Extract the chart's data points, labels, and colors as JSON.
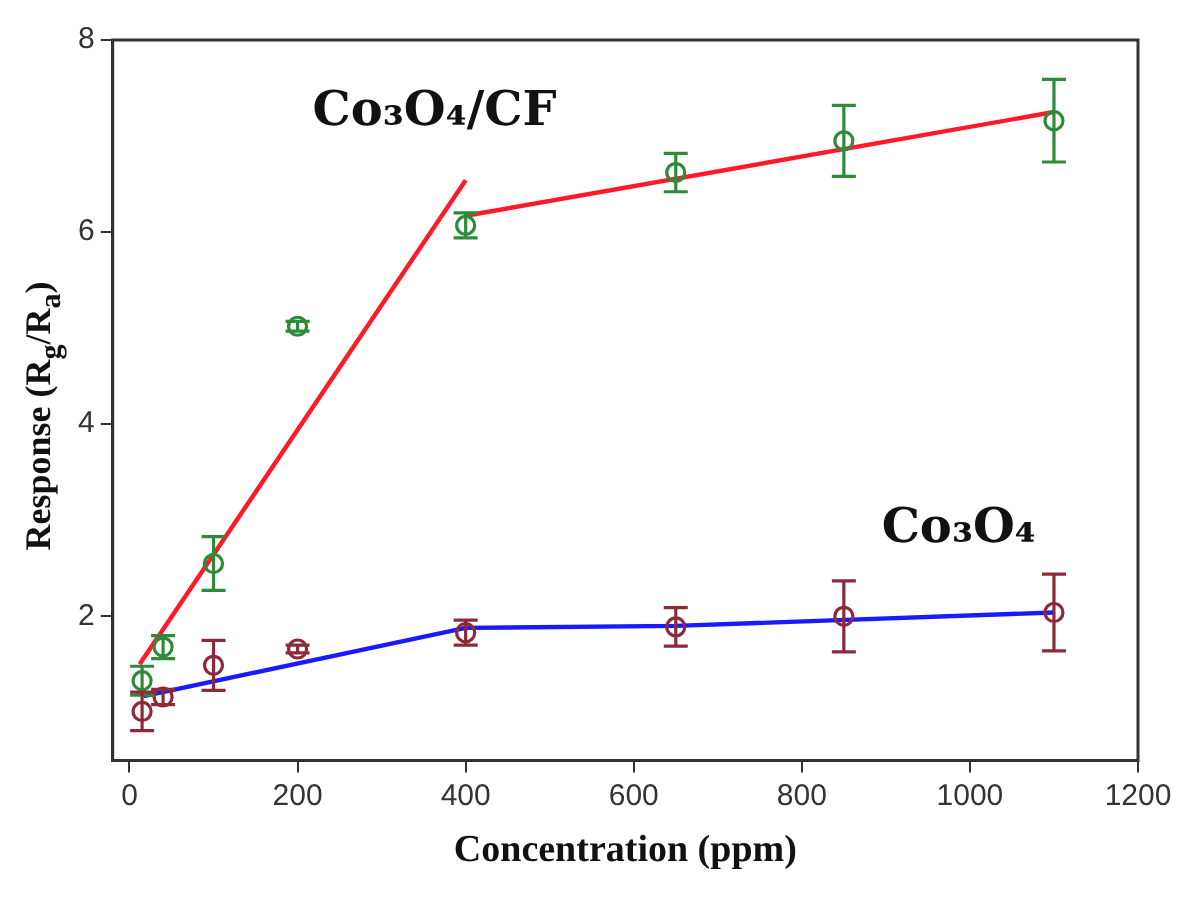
{
  "chart_data": {
    "type": "scatter",
    "xlabel": "Concentration (ppm)",
    "ylabel": "Response (R$_{g}$/R$_{a}$)",
    "xlim": [
      -20,
      1200
    ],
    "xticks": [
      0,
      200,
      400,
      600,
      800,
      1000,
      1200
    ],
    "ylim": [
      0.5,
      8
    ],
    "yticks": [
      2,
      4,
      6,
      8
    ],
    "grid": false,
    "legend": false,
    "marker": "circle",
    "series": [
      {
        "type": "scatter",
        "color": "#2e8b3a",
        "x": [
          15,
          40,
          100,
          200,
          400,
          650,
          850,
          1100
        ],
        "values": [
          1.33,
          1.68,
          2.55,
          5.02,
          6.07,
          6.62,
          6.95,
          7.16
        ],
        "errors": [
          0.15,
          0.12,
          0.28,
          0.05,
          0.13,
          0.2,
          0.37,
          0.43
        ]
      },
      {
        "type": "scatter",
        "color": "#8b2a3a",
        "x": [
          15,
          40,
          100,
          200,
          400,
          650,
          850,
          1100
        ],
        "values": [
          1.01,
          1.16,
          1.49,
          1.66,
          1.83,
          1.89,
          2.0,
          2.04
        ],
        "errors": [
          0.2,
          0.08,
          0.26,
          0.04,
          0.13,
          0.2,
          0.37,
          0.4
        ]
      },
      {
        "type": "line",
        "color": "#ff1a2a",
        "marker": "none",
        "x": [
          12,
          400
        ],
        "values": [
          1.5,
          6.54
        ]
      },
      {
        "type": "line",
        "color": "#ff1a2a",
        "marker": "none",
        "x": [
          400,
          1100
        ],
        "values": [
          6.17,
          7.25
        ]
      },
      {
        "type": "line",
        "color": "#1a1aff",
        "marker": "none",
        "x": [
          17,
          400,
          650,
          1100
        ],
        "values": [
          1.17,
          1.88,
          1.9,
          2.04
        ]
      }
    ],
    "annotations": [
      "Co₃O₄/CF",
      "Co₃O₄"
    ]
  }
}
